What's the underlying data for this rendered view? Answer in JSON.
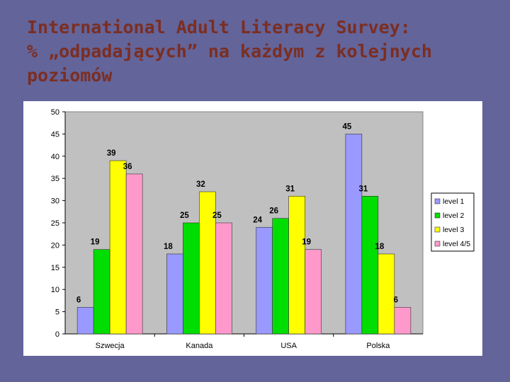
{
  "title": {
    "line1": "International Adult Literacy Survey:",
    "line2": "% „odpadających” na każdym z kolejnych",
    "line3": "poziomów"
  },
  "chart_data": {
    "type": "bar",
    "categories": [
      "Szwecja",
      "Kanada",
      "USA",
      "Polska"
    ],
    "series": [
      {
        "name": "level 1",
        "color": "#9999ff",
        "values": [
          6,
          18,
          24,
          45
        ]
      },
      {
        "name": "level 2",
        "color": "#00dd00",
        "values": [
          19,
          25,
          26,
          31
        ]
      },
      {
        "name": "level 3",
        "color": "#ffff00",
        "values": [
          39,
          32,
          31,
          18
        ]
      },
      {
        "name": "level 4/5",
        "color": "#ff99cc",
        "values": [
          36,
          25,
          19,
          6
        ]
      }
    ],
    "ylim": [
      0,
      50
    ],
    "yticks": [
      0,
      5,
      10,
      15,
      20,
      25,
      30,
      35,
      40,
      45,
      50
    ],
    "grid": false,
    "plot_background": "#c0c0c0",
    "legend_position": "right"
  }
}
